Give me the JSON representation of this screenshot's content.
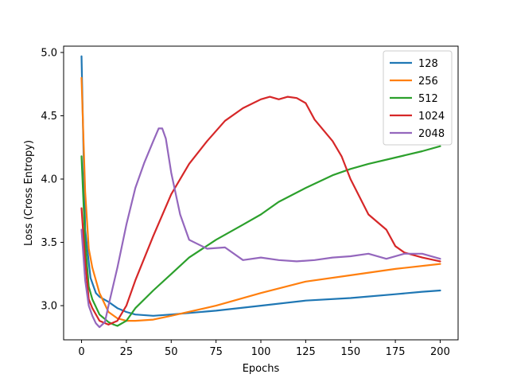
{
  "chart_data": {
    "type": "line",
    "xlabel": "Epochs",
    "ylabel": "Loss (Cross Entropy)",
    "xlim": [
      -10,
      210
    ],
    "ylim": [
      2.73,
      5.05
    ],
    "xticks": [
      0,
      25,
      50,
      75,
      100,
      125,
      150,
      175,
      200
    ],
    "yticks": [
      3.0,
      3.5,
      4.0,
      4.5,
      5.0
    ],
    "xtick_labels": [
      "0",
      "25",
      "50",
      "75",
      "100",
      "125",
      "150",
      "175",
      "200"
    ],
    "ytick_labels": [
      "3.0",
      "3.5",
      "4.0",
      "4.5",
      "5.0"
    ],
    "grid": false,
    "legend_position": "top-right",
    "series": [
      {
        "name": "128",
        "color": "#1f77b4",
        "x": [
          0,
          2,
          5,
          8,
          10,
          15,
          20,
          25,
          30,
          40,
          50,
          75,
          100,
          125,
          150,
          175,
          190,
          200
        ],
        "y": [
          4.97,
          3.6,
          3.22,
          3.1,
          3.07,
          3.03,
          2.98,
          2.95,
          2.93,
          2.92,
          2.93,
          2.96,
          3.0,
          3.04,
          3.06,
          3.09,
          3.11,
          3.12
        ]
      },
      {
        "name": "256",
        "color": "#ff7f0e",
        "x": [
          0,
          2,
          4,
          6,
          10,
          15,
          20,
          25,
          30,
          40,
          50,
          75,
          100,
          125,
          150,
          175,
          200
        ],
        "y": [
          4.8,
          3.9,
          3.45,
          3.3,
          3.1,
          2.95,
          2.9,
          2.88,
          2.88,
          2.89,
          2.92,
          3.0,
          3.1,
          3.19,
          3.24,
          3.29,
          3.33
        ]
      },
      {
        "name": "512",
        "color": "#2ca02c",
        "x": [
          0,
          2,
          4,
          6,
          10,
          15,
          18,
          20,
          25,
          30,
          40,
          50,
          60,
          75,
          90,
          100,
          110,
          125,
          140,
          150,
          160,
          175,
          190,
          200
        ],
        "y": [
          4.18,
          3.5,
          3.15,
          3.05,
          2.93,
          2.87,
          2.85,
          2.84,
          2.88,
          2.98,
          3.12,
          3.25,
          3.38,
          3.52,
          3.64,
          3.72,
          3.82,
          3.93,
          4.03,
          4.08,
          4.12,
          4.17,
          4.22,
          4.26
        ]
      },
      {
        "name": "1024",
        "color": "#d62728",
        "x": [
          0,
          2,
          4,
          6,
          10,
          15,
          20,
          25,
          30,
          40,
          50,
          60,
          70,
          80,
          90,
          100,
          105,
          110,
          115,
          120,
          125,
          130,
          140,
          145,
          150,
          160,
          170,
          175,
          180,
          190,
          200
        ],
        "y": [
          3.77,
          3.35,
          3.05,
          2.98,
          2.88,
          2.85,
          2.88,
          3.0,
          3.2,
          3.55,
          3.88,
          4.12,
          4.3,
          4.46,
          4.56,
          4.63,
          4.65,
          4.63,
          4.65,
          4.64,
          4.6,
          4.47,
          4.3,
          4.18,
          4.0,
          3.72,
          3.6,
          3.47,
          3.42,
          3.38,
          3.35
        ]
      },
      {
        "name": "2048",
        "color": "#9467bd",
        "x": [
          0,
          2,
          4,
          6,
          8,
          10,
          13,
          15,
          20,
          25,
          30,
          35,
          40,
          43,
          45,
          47,
          50,
          55,
          60,
          70,
          80,
          90,
          100,
          110,
          120,
          130,
          140,
          150,
          160,
          170,
          180,
          190,
          200
        ],
        "y": [
          3.6,
          3.2,
          3.0,
          2.92,
          2.86,
          2.83,
          2.87,
          3.0,
          3.3,
          3.64,
          3.93,
          4.13,
          4.3,
          4.4,
          4.4,
          4.32,
          4.05,
          3.72,
          3.52,
          3.45,
          3.46,
          3.36,
          3.38,
          3.36,
          3.35,
          3.36,
          3.38,
          3.39,
          3.41,
          3.37,
          3.41,
          3.41,
          3.37
        ]
      }
    ]
  }
}
